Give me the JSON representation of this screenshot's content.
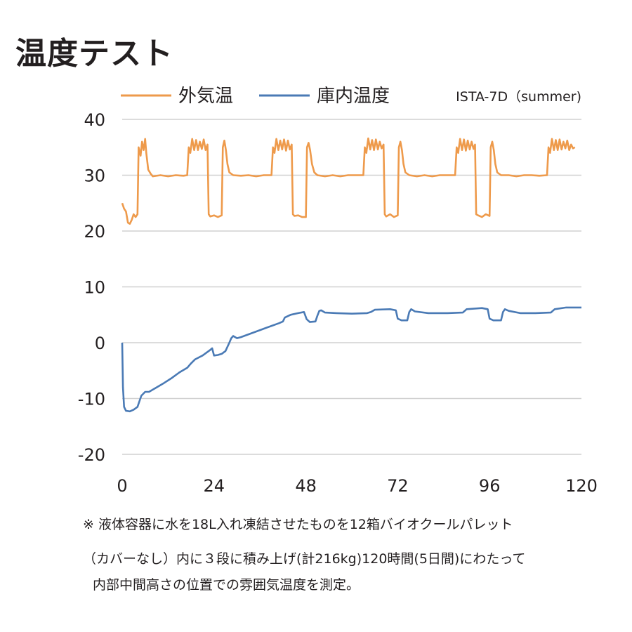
{
  "title": "温度テスト",
  "legend": {
    "outside_label": "外気温",
    "inside_label": "庫内温度",
    "standard": "ISTA-7D（summer)"
  },
  "colors": {
    "outside": "#ee9a4b",
    "inside": "#4a7ab5",
    "grid": "#d0d0d0",
    "axis_text": "#231f20"
  },
  "note": {
    "line1": "※ 液体容器に水を18L入れ凍結させたものを12箱バイオクールパレット",
    "line2": "（カバーなし）内に３段に積み上げ(計216kg)120時間(5日間)にわたって",
    "line3": "内部中間高さの位置での雰囲気温度を測定。"
  },
  "chart_data": {
    "type": "line",
    "title": "",
    "xlabel": "",
    "ylabel": "",
    "xlim": [
      0,
      120
    ],
    "ylim": [
      -20,
      40
    ],
    "x_ticks": [
      0,
      24,
      48,
      72,
      96,
      120
    ],
    "y_ticks": [
      40,
      30,
      20,
      10,
      0,
      -10,
      -20
    ],
    "grid": true,
    "legend_position": "top",
    "series": [
      {
        "name": "外気温",
        "color": "#ee9a4b",
        "points": [
          [
            0,
            25
          ],
          [
            0.5,
            24
          ],
          [
            1,
            23.5
          ],
          [
            1.5,
            21.5
          ],
          [
            2,
            21.3
          ],
          [
            2.5,
            22
          ],
          [
            3,
            23
          ],
          [
            3.5,
            22.5
          ],
          [
            4,
            23
          ],
          [
            4.3,
            35
          ],
          [
            4.8,
            33.5
          ],
          [
            5.2,
            36
          ],
          [
            5.6,
            34.5
          ],
          [
            6,
            36.5
          ],
          [
            6.3,
            34
          ],
          [
            6.8,
            31
          ],
          [
            7.5,
            30.2
          ],
          [
            8,
            29.8
          ],
          [
            10,
            30
          ],
          [
            12,
            29.8
          ],
          [
            14,
            30
          ],
          [
            16,
            29.9
          ],
          [
            17,
            30
          ],
          [
            17.4,
            35
          ],
          [
            17.8,
            34
          ],
          [
            18.3,
            36.5
          ],
          [
            18.8,
            34.5
          ],
          [
            19.3,
            36.3
          ],
          [
            19.8,
            34.5
          ],
          [
            20.3,
            36
          ],
          [
            20.8,
            34.7
          ],
          [
            21.3,
            36.4
          ],
          [
            21.8,
            34.5
          ],
          [
            22.3,
            35.5
          ],
          [
            22.6,
            23
          ],
          [
            23,
            22.6
          ],
          [
            24,
            22.8
          ],
          [
            25,
            22.5
          ],
          [
            26,
            22.8
          ],
          [
            26.3,
            35
          ],
          [
            26.7,
            36.2
          ],
          [
            27.1,
            34.5
          ],
          [
            27.5,
            32
          ],
          [
            28,
            30.5
          ],
          [
            29,
            30
          ],
          [
            31,
            29.9
          ],
          [
            33,
            30
          ],
          [
            35,
            29.8
          ],
          [
            37,
            30
          ],
          [
            39,
            30
          ],
          [
            39.4,
            35
          ],
          [
            39.8,
            34
          ],
          [
            40.3,
            36.5
          ],
          [
            40.8,
            34.5
          ],
          [
            41.3,
            36.2
          ],
          [
            41.8,
            34.6
          ],
          [
            42.3,
            36.4
          ],
          [
            42.8,
            34.4
          ],
          [
            43.3,
            36.2
          ],
          [
            43.8,
            34.6
          ],
          [
            44.3,
            35.5
          ],
          [
            44.6,
            23
          ],
          [
            45,
            22.7
          ],
          [
            46,
            22.8
          ],
          [
            47,
            22.5
          ],
          [
            48,
            22.5
          ],
          [
            48.3,
            35
          ],
          [
            48.7,
            35.8
          ],
          [
            49.1,
            34.5
          ],
          [
            49.6,
            32
          ],
          [
            50.2,
            30.5
          ],
          [
            51,
            30
          ],
          [
            53,
            29.8
          ],
          [
            55,
            30
          ],
          [
            57,
            29.8
          ],
          [
            59,
            30
          ],
          [
            61,
            30
          ],
          [
            63,
            30
          ],
          [
            63.4,
            35
          ],
          [
            63.8,
            34
          ],
          [
            64.3,
            36.6
          ],
          [
            64.8,
            34.6
          ],
          [
            65.3,
            36.3
          ],
          [
            65.8,
            34.5
          ],
          [
            66.3,
            36.4
          ],
          [
            66.8,
            34.6
          ],
          [
            67.3,
            36
          ],
          [
            67.8,
            34.8
          ],
          [
            68.3,
            35.5
          ],
          [
            68.6,
            23
          ],
          [
            69,
            22.6
          ],
          [
            70,
            23
          ],
          [
            71,
            22.5
          ],
          [
            72,
            22.8
          ],
          [
            72.3,
            35
          ],
          [
            72.7,
            36
          ],
          [
            73.1,
            34.5
          ],
          [
            73.5,
            32
          ],
          [
            74,
            30.5
          ],
          [
            75,
            30
          ],
          [
            77,
            29.8
          ],
          [
            79,
            30
          ],
          [
            81,
            29.8
          ],
          [
            83,
            30
          ],
          [
            85,
            30
          ],
          [
            87,
            30
          ],
          [
            87.4,
            35
          ],
          [
            87.8,
            34
          ],
          [
            88.3,
            36.5
          ],
          [
            88.8,
            34.5
          ],
          [
            89.3,
            36.4
          ],
          [
            89.8,
            34.4
          ],
          [
            90.3,
            36.2
          ],
          [
            90.8,
            34.6
          ],
          [
            91.3,
            36
          ],
          [
            91.8,
            34.7
          ],
          [
            92.2,
            35.5
          ],
          [
            92.5,
            23
          ],
          [
            93,
            22.8
          ],
          [
            94,
            22.5
          ],
          [
            95,
            23
          ],
          [
            96,
            22.7
          ],
          [
            96.3,
            35
          ],
          [
            96.7,
            36
          ],
          [
            97.1,
            34.5
          ],
          [
            97.5,
            32
          ],
          [
            98,
            30.5
          ],
          [
            99,
            30
          ],
          [
            101,
            30
          ],
          [
            103,
            29.8
          ],
          [
            105,
            30
          ],
          [
            107,
            30
          ],
          [
            109,
            29.9
          ],
          [
            111,
            30
          ],
          [
            111.4,
            35
          ],
          [
            111.8,
            34
          ],
          [
            112.3,
            36.5
          ],
          [
            112.8,
            34.5
          ],
          [
            113.3,
            36.3
          ],
          [
            113.8,
            34.5
          ],
          [
            114.3,
            36.4
          ],
          [
            114.8,
            34.6
          ],
          [
            115.3,
            36
          ],
          [
            115.8,
            34.8
          ],
          [
            116.3,
            36.2
          ],
          [
            116.8,
            34.5
          ],
          [
            117.3,
            35.5
          ],
          [
            117.8,
            34.8
          ],
          [
            118.3,
            35
          ]
        ]
      },
      {
        "name": "庫内温度",
        "color": "#4a7ab5",
        "points": [
          [
            0,
            0
          ],
          [
            0.2,
            -8
          ],
          [
            0.5,
            -11.5
          ],
          [
            1,
            -12.2
          ],
          [
            2,
            -12.3
          ],
          [
            3,
            -12
          ],
          [
            4,
            -11.5
          ],
          [
            4.5,
            -10.5
          ],
          [
            5,
            -9.5
          ],
          [
            6,
            -8.8
          ],
          [
            7,
            -8.8
          ],
          [
            9,
            -8
          ],
          [
            11,
            -7.2
          ],
          [
            13,
            -6.3
          ],
          [
            15,
            -5.3
          ],
          [
            17,
            -4.5
          ],
          [
            18,
            -3.7
          ],
          [
            19,
            -3
          ],
          [
            21,
            -2.3
          ],
          [
            23,
            -1.3
          ],
          [
            23.5,
            -1
          ],
          [
            24,
            -2.3
          ],
          [
            25,
            -2.2
          ],
          [
            26,
            -2
          ],
          [
            27,
            -1.5
          ],
          [
            28,
            0
          ],
          [
            28.5,
            0.8
          ],
          [
            29,
            1.2
          ],
          [
            30,
            0.8
          ],
          [
            31,
            1
          ],
          [
            33,
            1.5
          ],
          [
            35,
            2
          ],
          [
            37,
            2.5
          ],
          [
            39,
            3
          ],
          [
            41,
            3.5
          ],
          [
            42,
            3.8
          ],
          [
            42.5,
            4.5
          ],
          [
            44,
            5
          ],
          [
            46,
            5.3
          ],
          [
            47.5,
            5.5
          ],
          [
            48.2,
            4.2
          ],
          [
            49,
            3.7
          ],
          [
            50.5,
            3.8
          ],
          [
            51,
            4.8
          ],
          [
            51.5,
            5.7
          ],
          [
            52,
            5.8
          ],
          [
            53,
            5.4
          ],
          [
            56,
            5.3
          ],
          [
            60,
            5.2
          ],
          [
            64,
            5.3
          ],
          [
            65,
            5.5
          ],
          [
            66,
            5.9
          ],
          [
            70,
            6
          ],
          [
            71.5,
            5.8
          ],
          [
            72,
            4.3
          ],
          [
            73,
            4
          ],
          [
            74.5,
            4
          ],
          [
            75,
            5.5
          ],
          [
            75.5,
            6
          ],
          [
            76.5,
            5.6
          ],
          [
            80,
            5.3
          ],
          [
            85,
            5.3
          ],
          [
            89,
            5.4
          ],
          [
            90,
            6
          ],
          [
            94,
            6.2
          ],
          [
            95.5,
            6
          ],
          [
            96,
            4.3
          ],
          [
            97,
            4
          ],
          [
            99,
            4
          ],
          [
            99.5,
            5.5
          ],
          [
            100,
            6
          ],
          [
            101,
            5.7
          ],
          [
            104,
            5.3
          ],
          [
            108,
            5.3
          ],
          [
            112,
            5.4
          ],
          [
            113,
            6
          ],
          [
            116,
            6.3
          ],
          [
            120,
            6.3
          ]
        ]
      }
    ]
  }
}
